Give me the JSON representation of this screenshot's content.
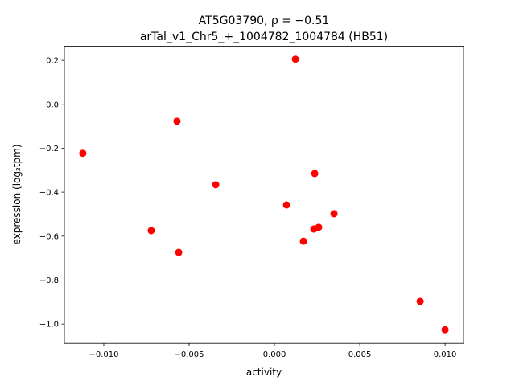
{
  "chart_data": {
    "type": "scatter",
    "title_line1": "AT5G03790, ρ = −0.51",
    "title_line2": "arTal_v1_Chr5_+_1004782_1004784 (HB51)",
    "xlabel": "activity",
    "ylabel": "expression (log₂tpm)",
    "xlim": [
      -0.01231,
      0.01108
    ],
    "ylim": [
      -1.088,
      0.264
    ],
    "xticks": [
      -0.01,
      -0.005,
      0.0,
      0.005,
      0.01
    ],
    "xtick_labels": [
      "−0.010",
      "−0.005",
      "0.000",
      "0.005",
      "0.010"
    ],
    "yticks": [
      0.2,
      0.0,
      -0.2,
      -0.4,
      -0.6,
      -0.8,
      -1.0
    ],
    "ytick_labels": [
      "0.2",
      "0.0",
      "−0.2",
      "−0.4",
      "−0.6",
      "−0.8",
      "−1.0"
    ],
    "grid": false,
    "marker_color": "#ff0000",
    "points": [
      {
        "x": -0.01123,
        "y": -0.223
      },
      {
        "x": -0.00571,
        "y": -0.077
      },
      {
        "x": 0.00123,
        "y": 0.205
      },
      {
        "x": -0.00344,
        "y": -0.366
      },
      {
        "x": -0.00722,
        "y": -0.575
      },
      {
        "x": -0.00561,
        "y": -0.674
      },
      {
        "x": 0.00071,
        "y": -0.458
      },
      {
        "x": 0.00236,
        "y": -0.315
      },
      {
        "x": 0.00349,
        "y": -0.498
      },
      {
        "x": 0.00231,
        "y": -0.568
      },
      {
        "x": 0.00259,
        "y": -0.56
      },
      {
        "x": 0.0017,
        "y": -0.623
      },
      {
        "x": 0.00854,
        "y": -0.897
      },
      {
        "x": 0.01,
        "y": -1.026
      }
    ]
  }
}
